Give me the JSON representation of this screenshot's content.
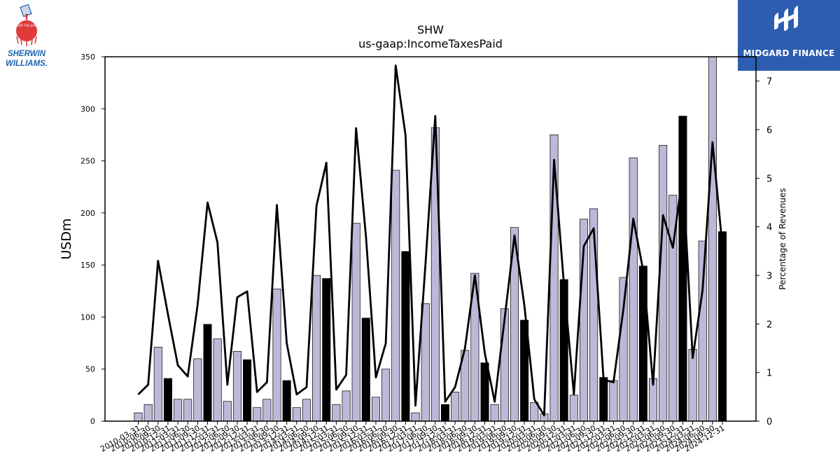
{
  "logos": {
    "left_name": "SHERWIN WILLIAMS.",
    "left_badge": "COVER THE EARTH",
    "right_name": "MIDGARD FINANCE"
  },
  "colors": {
    "bar_normal": "#bcb8d8",
    "bar_highlight": "#000000",
    "line": "#000000",
    "brand_blue": "#2d5db1",
    "sherwin_red": "#e03b3b",
    "sherwin_blue": "#1e63b0"
  },
  "chart_data": {
    "type": "bar",
    "title": "SHW",
    "subtitle": "us-gaap:IncomeTaxesPaid",
    "ylabel": "USDm",
    "y2label": "Percentage of Revenues",
    "ylim": [
      0,
      350
    ],
    "y2lim": [
      0,
      7.5
    ],
    "yticks": [
      0,
      50,
      100,
      150,
      200,
      250,
      300,
      350
    ],
    "y2ticks": [
      0,
      1,
      2,
      3,
      4,
      5,
      6,
      7
    ],
    "grid": false,
    "categories": [
      "2010-03-31",
      "2010-06-30",
      "2010-09-30",
      "2010-12-31",
      "2011-03-31",
      "2011-06-30",
      "2011-09-30",
      "2011-12-31",
      "2012-03-31",
      "2012-06-30",
      "2012-09-30",
      "2012-12-31",
      "2013-03-31",
      "2013-06-30",
      "2013-09-30",
      "2013-12-31",
      "2014-03-31",
      "2014-06-30",
      "2014-09-30",
      "2014-12-31",
      "2015-03-31",
      "2015-06-30",
      "2015-09-30",
      "2015-12-31",
      "2016-03-31",
      "2016-06-30",
      "2016-09-30",
      "2016-12-31",
      "2017-03-31",
      "2017-06-30",
      "2017-09-30",
      "2017-12-31",
      "2018-03-31",
      "2018-06-30",
      "2018-09-30",
      "2018-12-31",
      "2019-03-31",
      "2019-06-30",
      "2019-09-30",
      "2019-12-31",
      "2020-03-31",
      "2020-06-30",
      "2020-09-30",
      "2020-12-31",
      "2021-03-31",
      "2021-06-30",
      "2021-09-30",
      "2021-12-31",
      "2022-03-31",
      "2022-06-30",
      "2022-09-30",
      "2022-12-31",
      "2023-03-31",
      "2023-06-30",
      "2023-09-30",
      "2023-12-31",
      "2024-03-31",
      "2024-06-30",
      "2024-09-30",
      "2024-12-31"
    ],
    "series": [
      {
        "kind": "bar",
        "axis": "left",
        "values": [
          8,
          16,
          71,
          41,
          21,
          21,
          60,
          93,
          79,
          19,
          67,
          59,
          13,
          21,
          127,
          39,
          13,
          21,
          140,
          137,
          16,
          29,
          190,
          99,
          23,
          50,
          241,
          163,
          8,
          113,
          282,
          16,
          28,
          68,
          142,
          56,
          16,
          108,
          186,
          97,
          18,
          7,
          275,
          136,
          25,
          194,
          204,
          42,
          39,
          138,
          253,
          149,
          41,
          265,
          217,
          293,
          69,
          173,
          352,
          182
        ],
        "highlight_every": 4,
        "highlight_offset": 3
      },
      {
        "kind": "line",
        "axis": "right",
        "values": [
          0.55,
          0.75,
          3.3,
          2.2,
          1.15,
          0.92,
          2.4,
          4.5,
          3.68,
          0.75,
          2.55,
          2.67,
          0.6,
          0.8,
          4.45,
          1.6,
          0.55,
          0.7,
          4.43,
          5.32,
          0.65,
          0.95,
          6.03,
          3.8,
          0.9,
          1.6,
          7.32,
          5.88,
          0.32,
          3.2,
          6.28,
          0.4,
          0.7,
          1.5,
          3.0,
          1.4,
          0.4,
          2.1,
          3.82,
          2.38,
          0.45,
          0.12,
          5.38,
          2.8,
          0.55,
          3.6,
          3.97,
          0.85,
          0.8,
          2.3,
          4.17,
          3.1,
          0.75,
          4.24,
          3.57,
          5.1,
          1.3,
          2.7,
          5.74,
          3.6
        ]
      }
    ]
  }
}
